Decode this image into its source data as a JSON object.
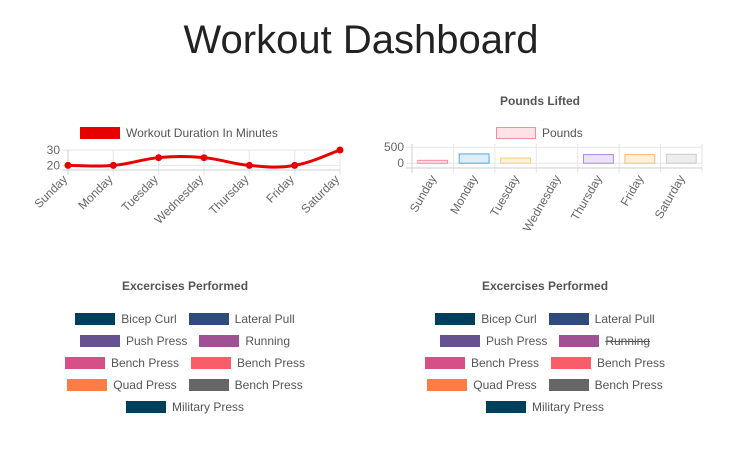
{
  "page": {
    "title": "Workout Dashboard"
  },
  "duration_chart": {
    "legend_label": "Workout Duration In Minutes",
    "color": "#e60000"
  },
  "pounds_chart": {
    "title": "Pounds Lifted",
    "legend_label": "Pounds",
    "fill_colors": [
      "#fde3e7",
      "#dbeefa",
      "#fff2d9",
      "#e8f5f5",
      "#ece3fb",
      "#fff0dd",
      "#ededed"
    ],
    "border_colors": [
      "#f28ca0",
      "#56a7e1",
      "#fdcf6e",
      "#70c0c0",
      "#a98ae6",
      "#fdbb6e",
      "#c9cbcf"
    ]
  },
  "exercises_left": {
    "title": "Excercises Performed",
    "items": [
      {
        "label": "Bicep Curl",
        "color": "#003f5c",
        "struck": false
      },
      {
        "label": "Lateral Pull",
        "color": "#2f4b7c",
        "struck": false
      },
      {
        "label": "Push Press",
        "color": "#665191",
        "struck": false
      },
      {
        "label": "Running",
        "color": "#a05195",
        "struck": false
      },
      {
        "label": "Bench Press",
        "color": "#d45087",
        "struck": false
      },
      {
        "label": "Bench Press",
        "color": "#f95d6a",
        "struck": false
      },
      {
        "label": "Quad Press",
        "color": "#ff7c43",
        "struck": false
      },
      {
        "label": "Bench Press",
        "color": "#666666",
        "struck": false
      },
      {
        "label": "Military Press",
        "color": "#003f5c",
        "struck": false
      }
    ]
  },
  "exercises_right": {
    "title": "Excercises Performed",
    "items": [
      {
        "label": "Bicep Curl",
        "color": "#003f5c",
        "struck": false
      },
      {
        "label": "Lateral Pull",
        "color": "#2f4b7c",
        "struck": false
      },
      {
        "label": "Push Press",
        "color": "#665191",
        "struck": false
      },
      {
        "label": "Running",
        "color": "#a05195",
        "struck": true
      },
      {
        "label": "Bench Press",
        "color": "#d45087",
        "struck": false
      },
      {
        "label": "Bench Press",
        "color": "#f95d6a",
        "struck": false
      },
      {
        "label": "Quad Press",
        "color": "#ff7c43",
        "struck": false
      },
      {
        "label": "Bench Press",
        "color": "#666666",
        "struck": false
      },
      {
        "label": "Military Press",
        "color": "#003f5c",
        "struck": false
      }
    ]
  },
  "chart_data": [
    {
      "type": "line",
      "categories": [
        "Sunday",
        "Monday",
        "Tuesday",
        "Wednesday",
        "Thursday",
        "Friday",
        "Saturday"
      ],
      "series": [
        {
          "name": "Workout Duration In Minutes",
          "values": [
            20,
            20,
            25,
            25,
            20,
            20,
            30
          ]
        }
      ],
      "yticks": [
        20,
        30
      ],
      "ylim": [
        17,
        30
      ],
      "legend": "top"
    },
    {
      "type": "bar",
      "title": "Pounds Lifted",
      "categories": [
        "Sunday",
        "Monday",
        "Tuesday",
        "Wednesday",
        "Thursday",
        "Friday",
        "Saturday"
      ],
      "series": [
        {
          "name": "Pounds",
          "values": [
            90,
            290,
            160,
            0,
            270,
            270,
            280
          ]
        }
      ],
      "yticks": [
        0,
        500
      ],
      "ylim": [
        -150,
        600
      ],
      "legend": "top"
    }
  ]
}
